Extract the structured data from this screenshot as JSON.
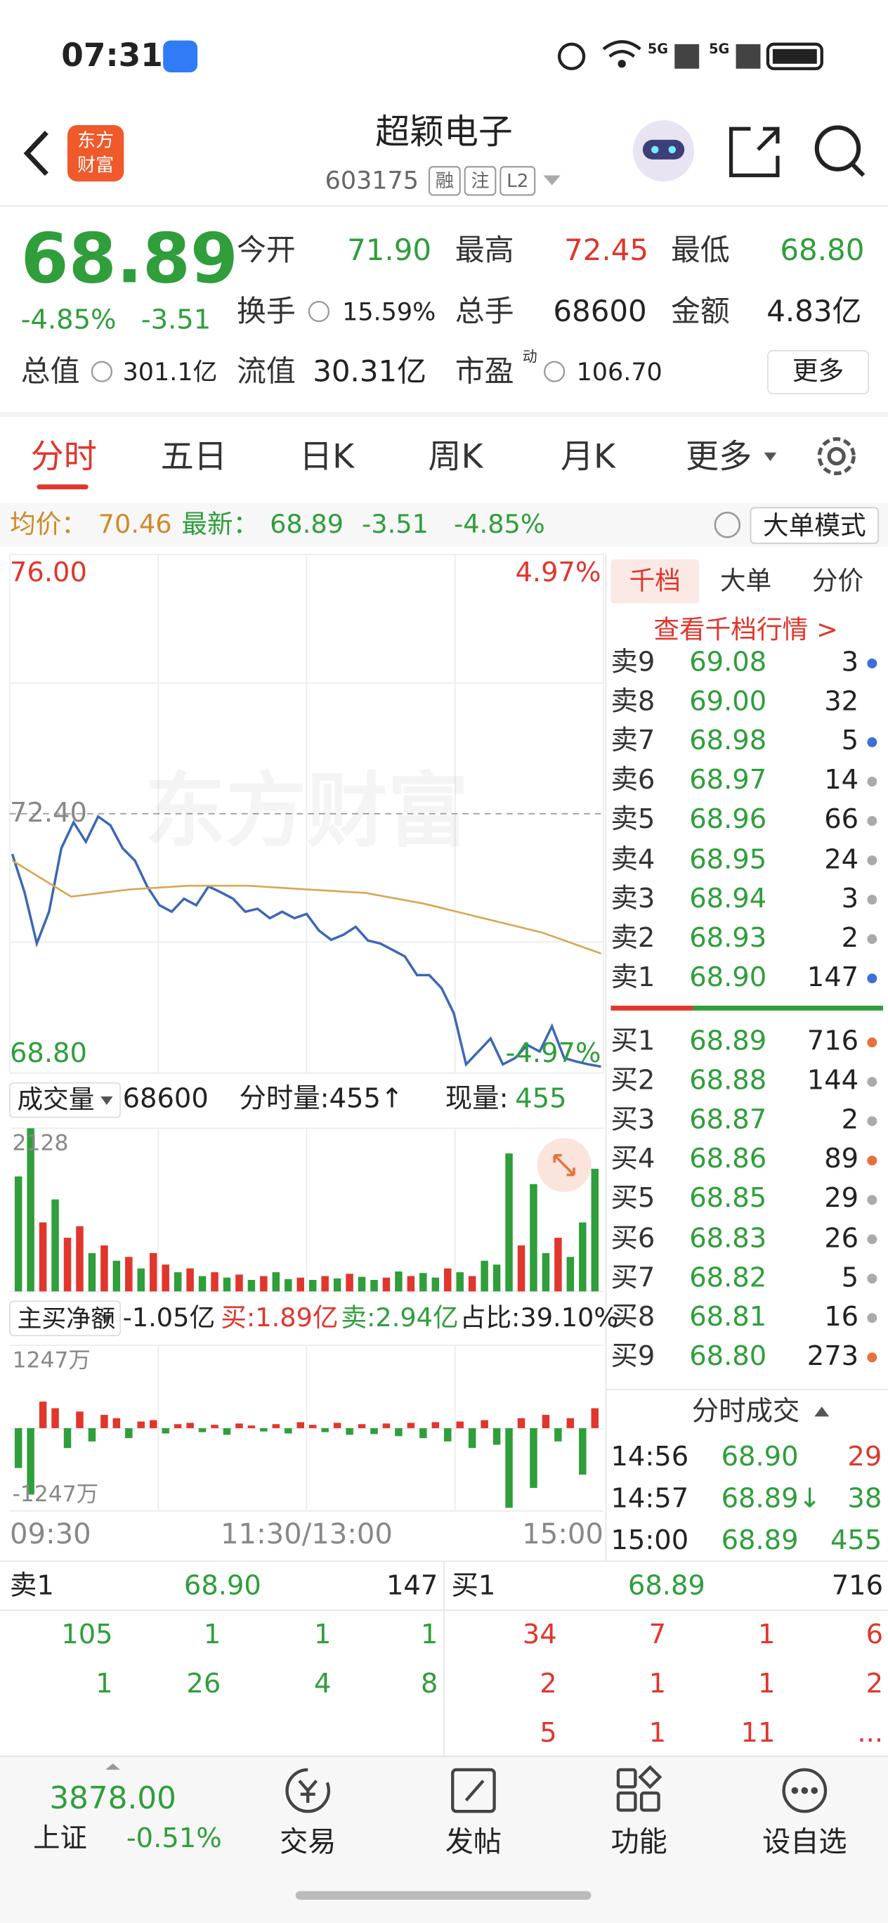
{
  "status_bar": {
    "time": "07:31",
    "network_1": "5G",
    "network_2": "5G"
  },
  "header": {
    "logo": [
      "东方",
      "财富"
    ],
    "title": "超颖电子",
    "code": "603175",
    "tags": [
      "融",
      "注",
      "L2"
    ]
  },
  "quote": {
    "price": "68.89",
    "change_pct": "-4.85%",
    "change": "-3.51",
    "fields": [
      {
        "label": "今开",
        "value": "71.90"
      },
      {
        "label": "最高",
        "value": "72.45"
      },
      {
        "label": "最低",
        "value": "68.80"
      },
      {
        "label": "换手",
        "value": "15.59%"
      },
      {
        "label": "总手",
        "value": "68600"
      },
      {
        "label": "金额",
        "value": "4.83亿"
      },
      {
        "label": "总值",
        "value": "301.1亿"
      },
      {
        "label": "流值",
        "value": "30.31亿"
      },
      {
        "label": "市盈",
        "superscript": "动",
        "value": "106.70"
      }
    ],
    "more_button": "更多"
  },
  "tabs": [
    "分时",
    "五日",
    "日K",
    "周K",
    "月K",
    "更多"
  ],
  "info_bar": {
    "avg_label": "均价：",
    "avg": "70.46",
    "latest_label": "最新：",
    "latest": "68.89",
    "change": "-3.51",
    "change_pct": "-4.85%",
    "mode_button": "大单模式"
  },
  "price_chart": {
    "type": "line",
    "watermark": "东方财富",
    "ylim": [
      68.8,
      76
    ],
    "yticks": [
      {
        "value": 76,
        "label": "76.00"
      },
      {
        "value": 72.4,
        "label": "72.40"
      },
      {
        "value": 68.8,
        "label": "68.80"
      }
    ],
    "y2lim": [
      -4.97,
      4.97
    ],
    "y2ticks": [
      {
        "value": 4.97,
        "label": "4.97%"
      },
      {
        "value": -4.97,
        "label": "-4.97%"
      }
    ],
    "series": [
      {
        "color": "#3b68b5",
        "values": [
          71.84,
          71.31,
          70.6,
          71.04,
          71.92,
          72.28,
          72.01,
          72.36,
          72.24,
          71.92,
          71.75,
          71.39,
          71.13,
          71.04,
          71.22,
          71.13,
          71.39,
          71.31,
          71.22,
          71.04,
          71.08,
          70.95,
          71.04,
          70.95,
          71.01,
          70.78,
          70.65,
          70.72,
          70.83,
          70.64,
          70.6,
          70.51,
          70.42,
          70.16,
          70.16,
          69.98,
          69.63,
          68.92,
          69.1,
          69.28,
          68.92,
          69.01,
          69.19,
          69.1,
          69.45,
          69.01,
          68.96,
          68.92,
          68.89
        ]
      },
      {
        "color": "#d9a650",
        "values": [
          71.75,
          71.25,
          71.35,
          71.4,
          71.4,
          71.35,
          71.3,
          71.15,
          70.95,
          70.75,
          70.46
        ]
      }
    ]
  },
  "volume": {
    "selector": "成交量",
    "total": "68600",
    "tick_volume": "分时量:455↑",
    "current_label": "现量:",
    "current": "455",
    "chart": {
      "type": "bar",
      "ylim": [
        0,
        2128
      ],
      "yticks": [
        2128
      ],
      "values": [
        1500,
        2128,
        900,
        1200,
        700,
        850,
        500,
        600,
        400,
        450,
        300,
        500,
        350,
        250,
        300,
        200,
        250,
        180,
        220,
        150,
        200,
        250,
        160,
        180,
        150,
        200,
        170,
        230,
        190,
        150,
        180,
        260,
        200,
        240,
        180,
        300,
        250,
        200,
        400,
        350,
        1800,
        600,
        1400,
        500,
        700,
        450,
        900,
        1600
      ],
      "colors": [
        "#2f9e3b",
        "#2f9e3b",
        "#e0362c",
        "#2f9e3b",
        "#e0362c",
        "#e0362c",
        "#2f9e3b",
        "#e0362c",
        "#2f9e3b",
        "#e0362c",
        "#2f9e3b",
        "#e0362c",
        "#e0362c",
        "#2f9e3b",
        "#e0362c",
        "#2f9e3b",
        "#e0362c",
        "#2f9e3b",
        "#e0362c",
        "#2f9e3b",
        "#e0362c",
        "#2f9e3b",
        "#2f9e3b",
        "#e0362c",
        "#2f9e3b",
        "#e0362c",
        "#2f9e3b",
        "#e0362c",
        "#2f9e3b",
        "#2f9e3b",
        "#e0362c",
        "#2f9e3b",
        "#e0362c",
        "#2f9e3b",
        "#2f9e3b",
        "#e0362c",
        "#2f9e3b",
        "#e0362c",
        "#2f9e3b",
        "#2f9e3b",
        "#2f9e3b",
        "#e0362c",
        "#2f9e3b",
        "#2f9e3b",
        "#e0362c",
        "#2f9e3b",
        "#2f9e3b",
        "#2f9e3b"
      ]
    }
  },
  "net_flow": {
    "selector": "主买净额",
    "net": "-1.05亿",
    "buy": "买:1.89亿",
    "sell": "卖:2.94亿",
    "ratio": "占比:39.10%",
    "chart": {
      "type": "bar",
      "ylim": [
        -1247,
        1247
      ],
      "yticks": [
        {
          "value": 1247,
          "label": "1247万"
        },
        {
          "value": -1247,
          "label": "-1247万"
        }
      ],
      "values": [
        -600,
        -1000,
        400,
        300,
        -300,
        250,
        -200,
        200,
        150,
        -150,
        100,
        120,
        -80,
        60,
        80,
        -60,
        50,
        -100,
        70,
        40,
        -50,
        60,
        -80,
        90,
        50,
        -60,
        80,
        -100,
        60,
        -90,
        70,
        -120,
        80,
        -150,
        90,
        -200,
        100,
        -300,
        120,
        -250,
        -1200,
        150,
        -900,
        200,
        -200,
        150,
        -700,
        300
      ],
      "colors": {
        "positive": "#e0362c",
        "negative": "#2f9e3b"
      }
    }
  },
  "x_axis_labels": [
    "09:30",
    "11:30/13:00",
    "15:00"
  ],
  "order_book": {
    "tabs": [
      "千档",
      "大单",
      "分价"
    ],
    "link": "查看千档行情 >",
    "asks": [
      {
        "label": "卖9",
        "price": "69.08",
        "qty": "3",
        "dot": "#3d6fd6"
      },
      {
        "label": "卖8",
        "price": "69.00",
        "qty": "32",
        "dot": null
      },
      {
        "label": "卖7",
        "price": "68.98",
        "qty": "5",
        "dot": "#3d6fd6"
      },
      {
        "label": "卖6",
        "price": "68.97",
        "qty": "14",
        "dot": "#aaaaaa"
      },
      {
        "label": "卖5",
        "price": "68.96",
        "qty": "66",
        "dot": "#aaaaaa"
      },
      {
        "label": "卖4",
        "price": "68.95",
        "qty": "24",
        "dot": "#aaaaaa"
      },
      {
        "label": "卖3",
        "price": "68.94",
        "qty": "3",
        "dot": "#aaaaaa"
      },
      {
        "label": "卖2",
        "price": "68.93",
        "qty": "2",
        "dot": "#aaaaaa"
      },
      {
        "label": "卖1",
        "price": "68.90",
        "qty": "147",
        "dot": "#3d6fd6"
      }
    ],
    "bids": [
      {
        "label": "买1",
        "price": "68.89",
        "qty": "716",
        "dot": "#e8703a"
      },
      {
        "label": "买2",
        "price": "68.88",
        "qty": "144",
        "dot": "#aaaaaa"
      },
      {
        "label": "买3",
        "price": "68.87",
        "qty": "2",
        "dot": "#aaaaaa"
      },
      {
        "label": "买4",
        "price": "68.86",
        "qty": "89",
        "dot": "#e8703a"
      },
      {
        "label": "买5",
        "price": "68.85",
        "qty": "29",
        "dot": "#aaaaaa"
      },
      {
        "label": "买6",
        "price": "68.83",
        "qty": "26",
        "dot": "#aaaaaa"
      },
      {
        "label": "买7",
        "price": "68.82",
        "qty": "5",
        "dot": "#aaaaaa"
      },
      {
        "label": "买8",
        "price": "68.81",
        "qty": "16",
        "dot": "#aaaaaa"
      },
      {
        "label": "买9",
        "price": "68.80",
        "qty": "273",
        "dot": "#e8703a"
      }
    ]
  },
  "trades": {
    "title": "分时成交",
    "rows": [
      {
        "time": "14:56",
        "price": "68.90",
        "qty": "29",
        "color": "#e0362c"
      },
      {
        "time": "14:57",
        "price": "68.89↓",
        "qty": "38",
        "color": "#2f9e3b"
      },
      {
        "time": "15:00",
        "price": "68.89",
        "qty": "455",
        "color": "#2f9e3b"
      }
    ]
  },
  "queue": {
    "ask": {
      "label": "卖1",
      "price": "68.90",
      "qty": "147",
      "orders": [
        [
          "105",
          "1",
          "1",
          "1"
        ],
        [
          "1",
          "26",
          "4",
          "8"
        ]
      ]
    },
    "bid": {
      "label": "买1",
      "price": "68.89",
      "qty": "716",
      "orders": [
        [
          "34",
          "7",
          "1",
          "6"
        ],
        [
          "2",
          "1",
          "1",
          "2"
        ],
        [
          "5",
          "1",
          "11",
          "..."
        ]
      ]
    }
  },
  "bottom_nav": {
    "index_value": "3878.00",
    "index_name": "上证",
    "index_change": "-0.51%",
    "items": [
      "交易",
      "发帖",
      "功能",
      "设自选"
    ]
  }
}
